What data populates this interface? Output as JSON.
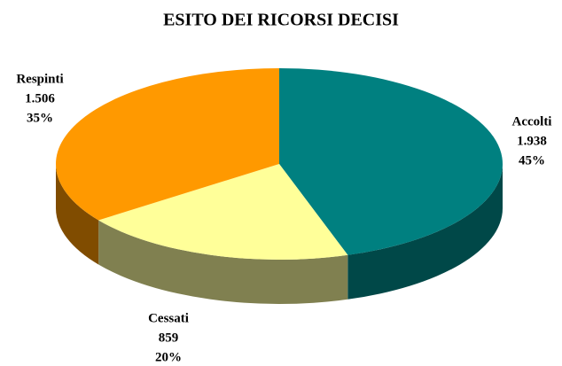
{
  "chart_data": {
    "type": "pie",
    "title": "ESITO DEI RICORSI DECISI",
    "categories": [
      "Accolti",
      "Cessati",
      "Respinti"
    ],
    "values": [
      1938,
      859,
      1506
    ],
    "value_labels": [
      "1.938",
      "859",
      "1.506"
    ],
    "shares": [
      45,
      20,
      35
    ],
    "share_labels": [
      "45%",
      "20%",
      "35%"
    ],
    "colors": [
      "#008080",
      "#ffff99",
      "#ff9900"
    ],
    "side_colors": [
      "#004848",
      "#808050",
      "#804c00"
    ]
  }
}
